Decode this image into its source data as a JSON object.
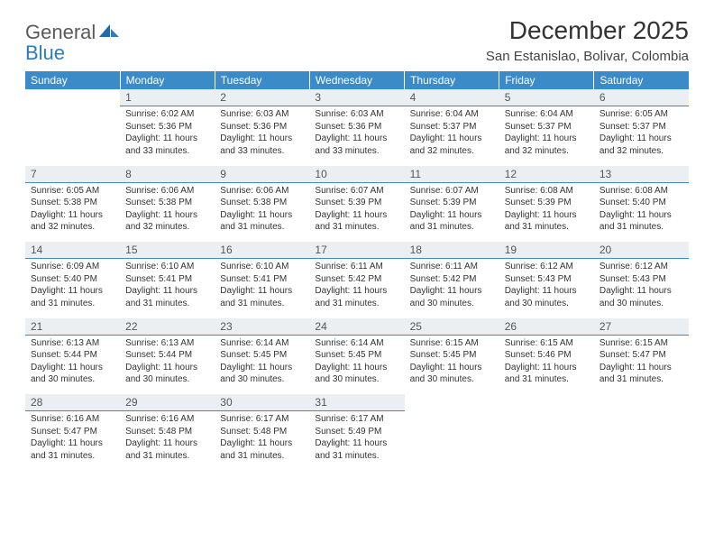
{
  "colors": {
    "header_bg": "#3b8bc8",
    "header_text": "#ffffff",
    "daynum_bg": "#eceff1",
    "daynum_border": "#3b8bc8",
    "body_text": "#333333",
    "page_bg": "#ffffff",
    "logo_gray": "#5a5a5a",
    "logo_blue": "#2b7cc0"
  },
  "logo": {
    "line1": "General",
    "line2": "Blue"
  },
  "title": "December 2025",
  "location": "San Estanislao, Bolivar, Colombia",
  "weekdays": [
    "Sunday",
    "Monday",
    "Tuesday",
    "Wednesday",
    "Thursday",
    "Friday",
    "Saturday"
  ],
  "weeks": [
    [
      {
        "empty": true
      },
      {
        "num": "1",
        "sunrise": "Sunrise: 6:02 AM",
        "sunset": "Sunset: 5:36 PM",
        "day1": "Daylight: 11 hours",
        "day2": "and 33 minutes."
      },
      {
        "num": "2",
        "sunrise": "Sunrise: 6:03 AM",
        "sunset": "Sunset: 5:36 PM",
        "day1": "Daylight: 11 hours",
        "day2": "and 33 minutes."
      },
      {
        "num": "3",
        "sunrise": "Sunrise: 6:03 AM",
        "sunset": "Sunset: 5:36 PM",
        "day1": "Daylight: 11 hours",
        "day2": "and 33 minutes."
      },
      {
        "num": "4",
        "sunrise": "Sunrise: 6:04 AM",
        "sunset": "Sunset: 5:37 PM",
        "day1": "Daylight: 11 hours",
        "day2": "and 32 minutes."
      },
      {
        "num": "5",
        "sunrise": "Sunrise: 6:04 AM",
        "sunset": "Sunset: 5:37 PM",
        "day1": "Daylight: 11 hours",
        "day2": "and 32 minutes."
      },
      {
        "num": "6",
        "sunrise": "Sunrise: 6:05 AM",
        "sunset": "Sunset: 5:37 PM",
        "day1": "Daylight: 11 hours",
        "day2": "and 32 minutes."
      }
    ],
    [
      {
        "num": "7",
        "sunrise": "Sunrise: 6:05 AM",
        "sunset": "Sunset: 5:38 PM",
        "day1": "Daylight: 11 hours",
        "day2": "and 32 minutes."
      },
      {
        "num": "8",
        "sunrise": "Sunrise: 6:06 AM",
        "sunset": "Sunset: 5:38 PM",
        "day1": "Daylight: 11 hours",
        "day2": "and 32 minutes."
      },
      {
        "num": "9",
        "sunrise": "Sunrise: 6:06 AM",
        "sunset": "Sunset: 5:38 PM",
        "day1": "Daylight: 11 hours",
        "day2": "and 31 minutes."
      },
      {
        "num": "10",
        "sunrise": "Sunrise: 6:07 AM",
        "sunset": "Sunset: 5:39 PM",
        "day1": "Daylight: 11 hours",
        "day2": "and 31 minutes."
      },
      {
        "num": "11",
        "sunrise": "Sunrise: 6:07 AM",
        "sunset": "Sunset: 5:39 PM",
        "day1": "Daylight: 11 hours",
        "day2": "and 31 minutes."
      },
      {
        "num": "12",
        "sunrise": "Sunrise: 6:08 AM",
        "sunset": "Sunset: 5:39 PM",
        "day1": "Daylight: 11 hours",
        "day2": "and 31 minutes."
      },
      {
        "num": "13",
        "sunrise": "Sunrise: 6:08 AM",
        "sunset": "Sunset: 5:40 PM",
        "day1": "Daylight: 11 hours",
        "day2": "and 31 minutes."
      }
    ],
    [
      {
        "num": "14",
        "sunrise": "Sunrise: 6:09 AM",
        "sunset": "Sunset: 5:40 PM",
        "day1": "Daylight: 11 hours",
        "day2": "and 31 minutes."
      },
      {
        "num": "15",
        "sunrise": "Sunrise: 6:10 AM",
        "sunset": "Sunset: 5:41 PM",
        "day1": "Daylight: 11 hours",
        "day2": "and 31 minutes."
      },
      {
        "num": "16",
        "sunrise": "Sunrise: 6:10 AM",
        "sunset": "Sunset: 5:41 PM",
        "day1": "Daylight: 11 hours",
        "day2": "and 31 minutes."
      },
      {
        "num": "17",
        "sunrise": "Sunrise: 6:11 AM",
        "sunset": "Sunset: 5:42 PM",
        "day1": "Daylight: 11 hours",
        "day2": "and 31 minutes."
      },
      {
        "num": "18",
        "sunrise": "Sunrise: 6:11 AM",
        "sunset": "Sunset: 5:42 PM",
        "day1": "Daylight: 11 hours",
        "day2": "and 30 minutes."
      },
      {
        "num": "19",
        "sunrise": "Sunrise: 6:12 AM",
        "sunset": "Sunset: 5:43 PM",
        "day1": "Daylight: 11 hours",
        "day2": "and 30 minutes."
      },
      {
        "num": "20",
        "sunrise": "Sunrise: 6:12 AM",
        "sunset": "Sunset: 5:43 PM",
        "day1": "Daylight: 11 hours",
        "day2": "and 30 minutes."
      }
    ],
    [
      {
        "num": "21",
        "sunrise": "Sunrise: 6:13 AM",
        "sunset": "Sunset: 5:44 PM",
        "day1": "Daylight: 11 hours",
        "day2": "and 30 minutes."
      },
      {
        "num": "22",
        "sunrise": "Sunrise: 6:13 AM",
        "sunset": "Sunset: 5:44 PM",
        "day1": "Daylight: 11 hours",
        "day2": "and 30 minutes."
      },
      {
        "num": "23",
        "sunrise": "Sunrise: 6:14 AM",
        "sunset": "Sunset: 5:45 PM",
        "day1": "Daylight: 11 hours",
        "day2": "and 30 minutes."
      },
      {
        "num": "24",
        "sunrise": "Sunrise: 6:14 AM",
        "sunset": "Sunset: 5:45 PM",
        "day1": "Daylight: 11 hours",
        "day2": "and 30 minutes."
      },
      {
        "num": "25",
        "sunrise": "Sunrise: 6:15 AM",
        "sunset": "Sunset: 5:45 PM",
        "day1": "Daylight: 11 hours",
        "day2": "and 30 minutes."
      },
      {
        "num": "26",
        "sunrise": "Sunrise: 6:15 AM",
        "sunset": "Sunset: 5:46 PM",
        "day1": "Daylight: 11 hours",
        "day2": "and 31 minutes."
      },
      {
        "num": "27",
        "sunrise": "Sunrise: 6:15 AM",
        "sunset": "Sunset: 5:47 PM",
        "day1": "Daylight: 11 hours",
        "day2": "and 31 minutes."
      }
    ],
    [
      {
        "num": "28",
        "sunrise": "Sunrise: 6:16 AM",
        "sunset": "Sunset: 5:47 PM",
        "day1": "Daylight: 11 hours",
        "day2": "and 31 minutes."
      },
      {
        "num": "29",
        "sunrise": "Sunrise: 6:16 AM",
        "sunset": "Sunset: 5:48 PM",
        "day1": "Daylight: 11 hours",
        "day2": "and 31 minutes."
      },
      {
        "num": "30",
        "sunrise": "Sunrise: 6:17 AM",
        "sunset": "Sunset: 5:48 PM",
        "day1": "Daylight: 11 hours",
        "day2": "and 31 minutes."
      },
      {
        "num": "31",
        "sunrise": "Sunrise: 6:17 AM",
        "sunset": "Sunset: 5:49 PM",
        "day1": "Daylight: 11 hours",
        "day2": "and 31 minutes."
      },
      {
        "empty": true
      },
      {
        "empty": true
      },
      {
        "empty": true
      }
    ]
  ]
}
